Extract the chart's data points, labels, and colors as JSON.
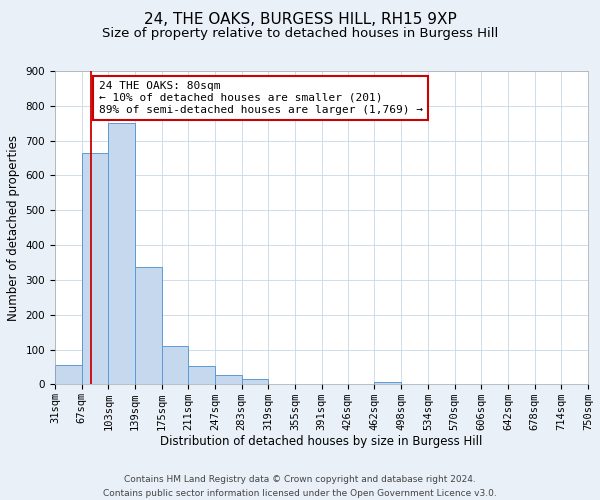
{
  "title": "24, THE OAKS, BURGESS HILL, RH15 9XP",
  "subtitle": "Size of property relative to detached houses in Burgess Hill",
  "xlabel": "Distribution of detached houses by size in Burgess Hill",
  "ylabel": "Number of detached properties",
  "bin_edges": [
    31,
    67,
    103,
    139,
    175,
    211,
    247,
    283,
    319,
    355,
    391,
    426,
    462,
    498,
    534,
    570,
    606,
    642,
    678,
    714,
    750
  ],
  "bin_labels": [
    "31sqm",
    "67sqm",
    "103sqm",
    "139sqm",
    "175sqm",
    "211sqm",
    "247sqm",
    "283sqm",
    "319sqm",
    "355sqm",
    "391sqm",
    "426sqm",
    "462sqm",
    "498sqm",
    "534sqm",
    "570sqm",
    "606sqm",
    "642sqm",
    "678sqm",
    "714sqm",
    "750sqm"
  ],
  "counts": [
    55,
    665,
    750,
    338,
    110,
    52,
    27,
    14,
    0,
    0,
    0,
    0,
    7,
    0,
    0,
    0,
    0,
    0,
    0,
    0
  ],
  "bar_color": "#c5d8ed",
  "bar_edge_color": "#5b9bd5",
  "property_size": 80,
  "vline_color": "#cc0000",
  "annotation_text": "24 THE OAKS: 80sqm\n← 10% of detached houses are smaller (201)\n89% of semi-detached houses are larger (1,769) →",
  "annotation_box_edge_color": "#cc0000",
  "ylim": [
    0,
    900
  ],
  "yticks": [
    0,
    100,
    200,
    300,
    400,
    500,
    600,
    700,
    800,
    900
  ],
  "footer_line1": "Contains HM Land Registry data © Crown copyright and database right 2024.",
  "footer_line2": "Contains public sector information licensed under the Open Government Licence v3.0.",
  "background_color": "#eaf0f8",
  "plot_bg_color": "#ffffff",
  "grid_color": "#c8d8e8",
  "title_fontsize": 11,
  "subtitle_fontsize": 9.5,
  "axis_label_fontsize": 8.5,
  "tick_fontsize": 7.5,
  "footer_fontsize": 6.5,
  "annot_fontsize": 8.0
}
